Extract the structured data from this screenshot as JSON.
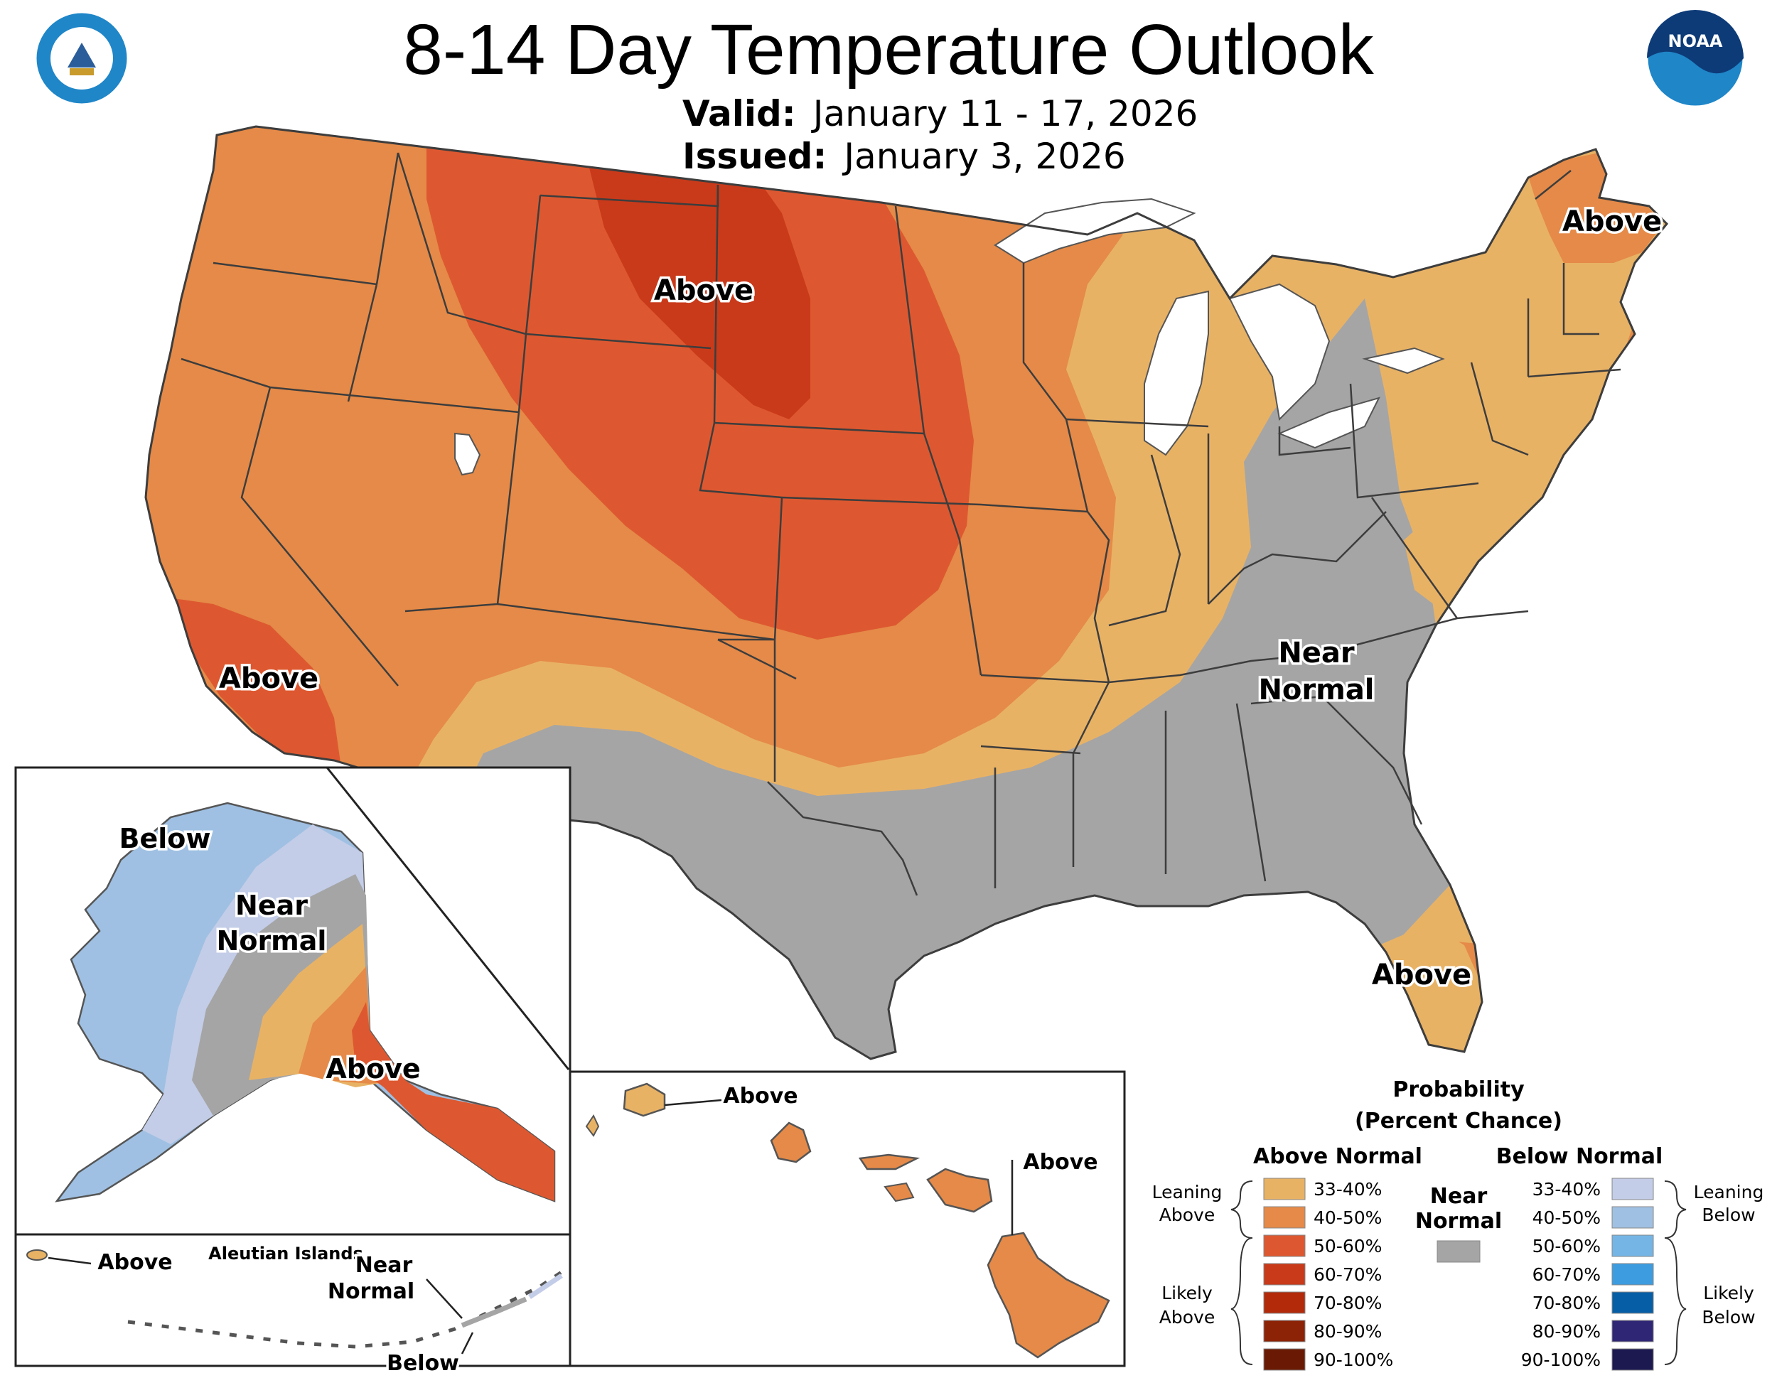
{
  "title": "8-14 Day Temperature Outlook",
  "valid_label": "Valid:",
  "valid_value": "January 11 - 17, 2026",
  "issued_label": "Issued:",
  "issued_value": "January 3, 2026",
  "logos": {
    "left": "seal-icon",
    "right": "noaa-logo-icon",
    "noaa_text": "NOAA"
  },
  "map_labels": {
    "conus_north": "Above",
    "conus_california": "Above",
    "conus_maine": "Above",
    "conus_near_1": "Near",
    "conus_near_2": "Normal",
    "conus_florida": "Above",
    "ak_below": "Below",
    "ak_near_1": "Near",
    "ak_near_2": "Normal",
    "ak_above": "Above",
    "hi_kauai": "Above",
    "hi_big_island": "Above",
    "aleut_above": "Above",
    "aleut_title": "Aleutian Islands",
    "aleut_near_1": "Near",
    "aleut_near_2": "Normal",
    "aleut_below": "Below"
  },
  "legend": {
    "title_1": "Probability",
    "title_2": "(Percent Chance)",
    "above_header": "Above Normal",
    "below_header": "Below Normal",
    "near_1": "Near",
    "near_2": "Normal",
    "near_color": "#a5a5a5",
    "leaning_above_1": "Leaning",
    "leaning_above_2": "Above",
    "likely_above_1": "Likely",
    "likely_above_2": "Above",
    "leaning_below_1": "Leaning",
    "leaning_below_2": "Below",
    "likely_below_1": "Likely",
    "likely_below_2": "Below",
    "above": [
      {
        "label": "33-40%",
        "color": "#e8b265"
      },
      {
        "label": "40-50%",
        "color": "#e58a48"
      },
      {
        "label": "50-60%",
        "color": "#dd5830"
      },
      {
        "label": "60-70%",
        "color": "#c93a1a"
      },
      {
        "label": "70-80%",
        "color": "#b22a0a"
      },
      {
        "label": "80-90%",
        "color": "#8c2206"
      },
      {
        "label": "90-100%",
        "color": "#6a1a04"
      }
    ],
    "below": [
      {
        "label": "33-40%",
        "color": "#c3cde8"
      },
      {
        "label": "40-50%",
        "color": "#9fc0e2"
      },
      {
        "label": "50-60%",
        "color": "#75b5e6"
      },
      {
        "label": "60-70%",
        "color": "#3d9ce0"
      },
      {
        "label": "70-80%",
        "color": "#065ea6"
      },
      {
        "label": "80-90%",
        "color": "#2f2676"
      },
      {
        "label": "90-100%",
        "color": "#1c1850"
      }
    ]
  }
}
